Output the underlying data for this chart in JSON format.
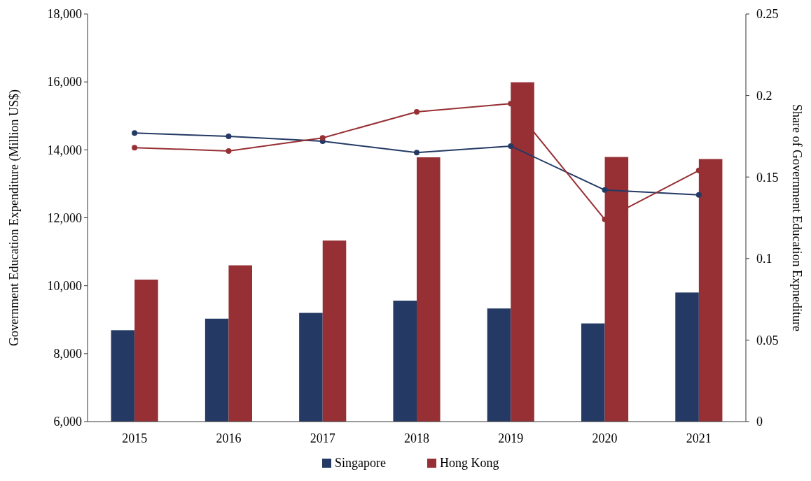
{
  "chart_data": {
    "type": "bar",
    "categories": [
      "2015",
      "2016",
      "2017",
      "2018",
      "2019",
      "2020",
      "2021"
    ],
    "ylabel": "Government Education Expenditure (Million US$)",
    "y2label": "Share of Government Education Expnediture",
    "ylim": [
      6000,
      18000
    ],
    "yticks": [
      {
        "value": 6000,
        "label": "6,000"
      },
      {
        "value": 8000,
        "label": "8,000"
      },
      {
        "value": 10000,
        "label": "10,000"
      },
      {
        "value": 12000,
        "label": "12,000"
      },
      {
        "value": 14000,
        "label": "14,000"
      },
      {
        "value": 16000,
        "label": "16,000"
      },
      {
        "value": 18000,
        "label": "18,000"
      }
    ],
    "y2lim": [
      0,
      0.25
    ],
    "y2ticks": [
      0,
      0.05,
      0.1,
      0.15,
      0.2,
      0.25
    ],
    "series": [
      {
        "name": "Singapore",
        "color": "#243a64",
        "values": [
          8690,
          9030,
          9200,
          9560,
          9330,
          8890,
          9800
        ]
      },
      {
        "name": "Hong Kong",
        "color": "#973034",
        "values": [
          10180,
          10600,
          11330,
          13780,
          15990,
          13790,
          13730
        ]
      },
      {
        "type": "line",
        "axis": "y2",
        "color": "#243a64",
        "values": [
          0.177,
          0.175,
          0.172,
          0.165,
          0.169,
          0.142,
          0.139
        ]
      },
      {
        "type": "line",
        "axis": "y2",
        "color": "#973034",
        "values": [
          0.168,
          0.166,
          0.174,
          0.19,
          0.195,
          0.124,
          0.154
        ]
      }
    ],
    "marker": "circle",
    "legend": "bottom",
    "grid": false
  }
}
